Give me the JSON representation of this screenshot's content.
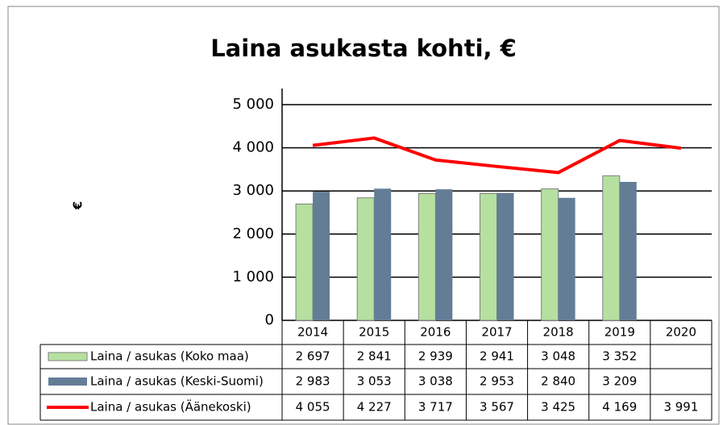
{
  "chart_data": {
    "type": "bar",
    "title": "Laina asukasta kohti, €",
    "y_label": "€",
    "categories": [
      "2014",
      "2015",
      "2016",
      "2017",
      "2018",
      "2019",
      "2020"
    ],
    "series": [
      {
        "name": "Laina / asukas (Koko maa)",
        "type": "bar",
        "color": "#b6e0a0",
        "values": [
          2697,
          2841,
          2939,
          2941,
          3048,
          3352,
          null
        ],
        "value_labels": [
          "2 697",
          "2 841",
          "2 939",
          "2 941",
          "3 048",
          "3 352",
          null
        ]
      },
      {
        "name": "Laina / asukas (Keski-Suomi)",
        "type": "bar",
        "color": "#647d96",
        "values": [
          2983,
          3053,
          3038,
          2953,
          2840,
          3209,
          null
        ],
        "value_labels": [
          "2 983",
          "3 053",
          "3 038",
          "2 953",
          "2 840",
          "3 209",
          null
        ]
      },
      {
        "name": "Laina / asukas (Äänekoski)",
        "type": "line",
        "color": "#ff0000",
        "values": [
          4055,
          4227,
          3717,
          3567,
          3425,
          4169,
          3991
        ],
        "value_labels": [
          "4 055",
          "4 227",
          "3 717",
          "3 567",
          "3 425",
          "4 169",
          "3 991"
        ]
      }
    ],
    "ylim": [
      0,
      5000
    ],
    "yticks": [
      0,
      {
        "value": 1000,
        "label": "1 000"
      },
      {
        "value": 2000,
        "label": "2 000"
      },
      {
        "value": 3000,
        "label": "3 000"
      },
      {
        "value": 4000,
        "label": "4 000"
      },
      {
        "value": 5000,
        "label": "5 000"
      }
    ],
    "grid": true
  }
}
